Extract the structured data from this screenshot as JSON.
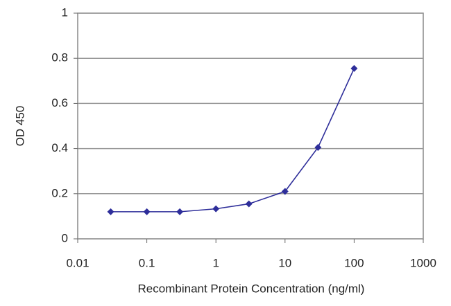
{
  "chart_data": {
    "type": "line",
    "x_label": "Recombinant Protein Concentration (ng/ml)",
    "y_label": "OD 450",
    "x_scale": "log",
    "xlim": [
      0.01,
      1000
    ],
    "xticks": [
      0.01,
      0.1,
      1,
      10,
      100,
      1000
    ],
    "ylim": [
      0,
      1
    ],
    "yticks": [
      0,
      0.2,
      0.4,
      0.6,
      0.8,
      1
    ],
    "grid": true,
    "series": [
      {
        "name": "OD 450",
        "color": "#2e2e9a",
        "x": [
          0.03,
          0.1,
          0.3,
          1,
          3,
          10,
          30,
          100
        ],
        "values": [
          0.12,
          0.12,
          0.12,
          0.133,
          0.155,
          0.21,
          0.405,
          0.755
        ]
      }
    ]
  }
}
